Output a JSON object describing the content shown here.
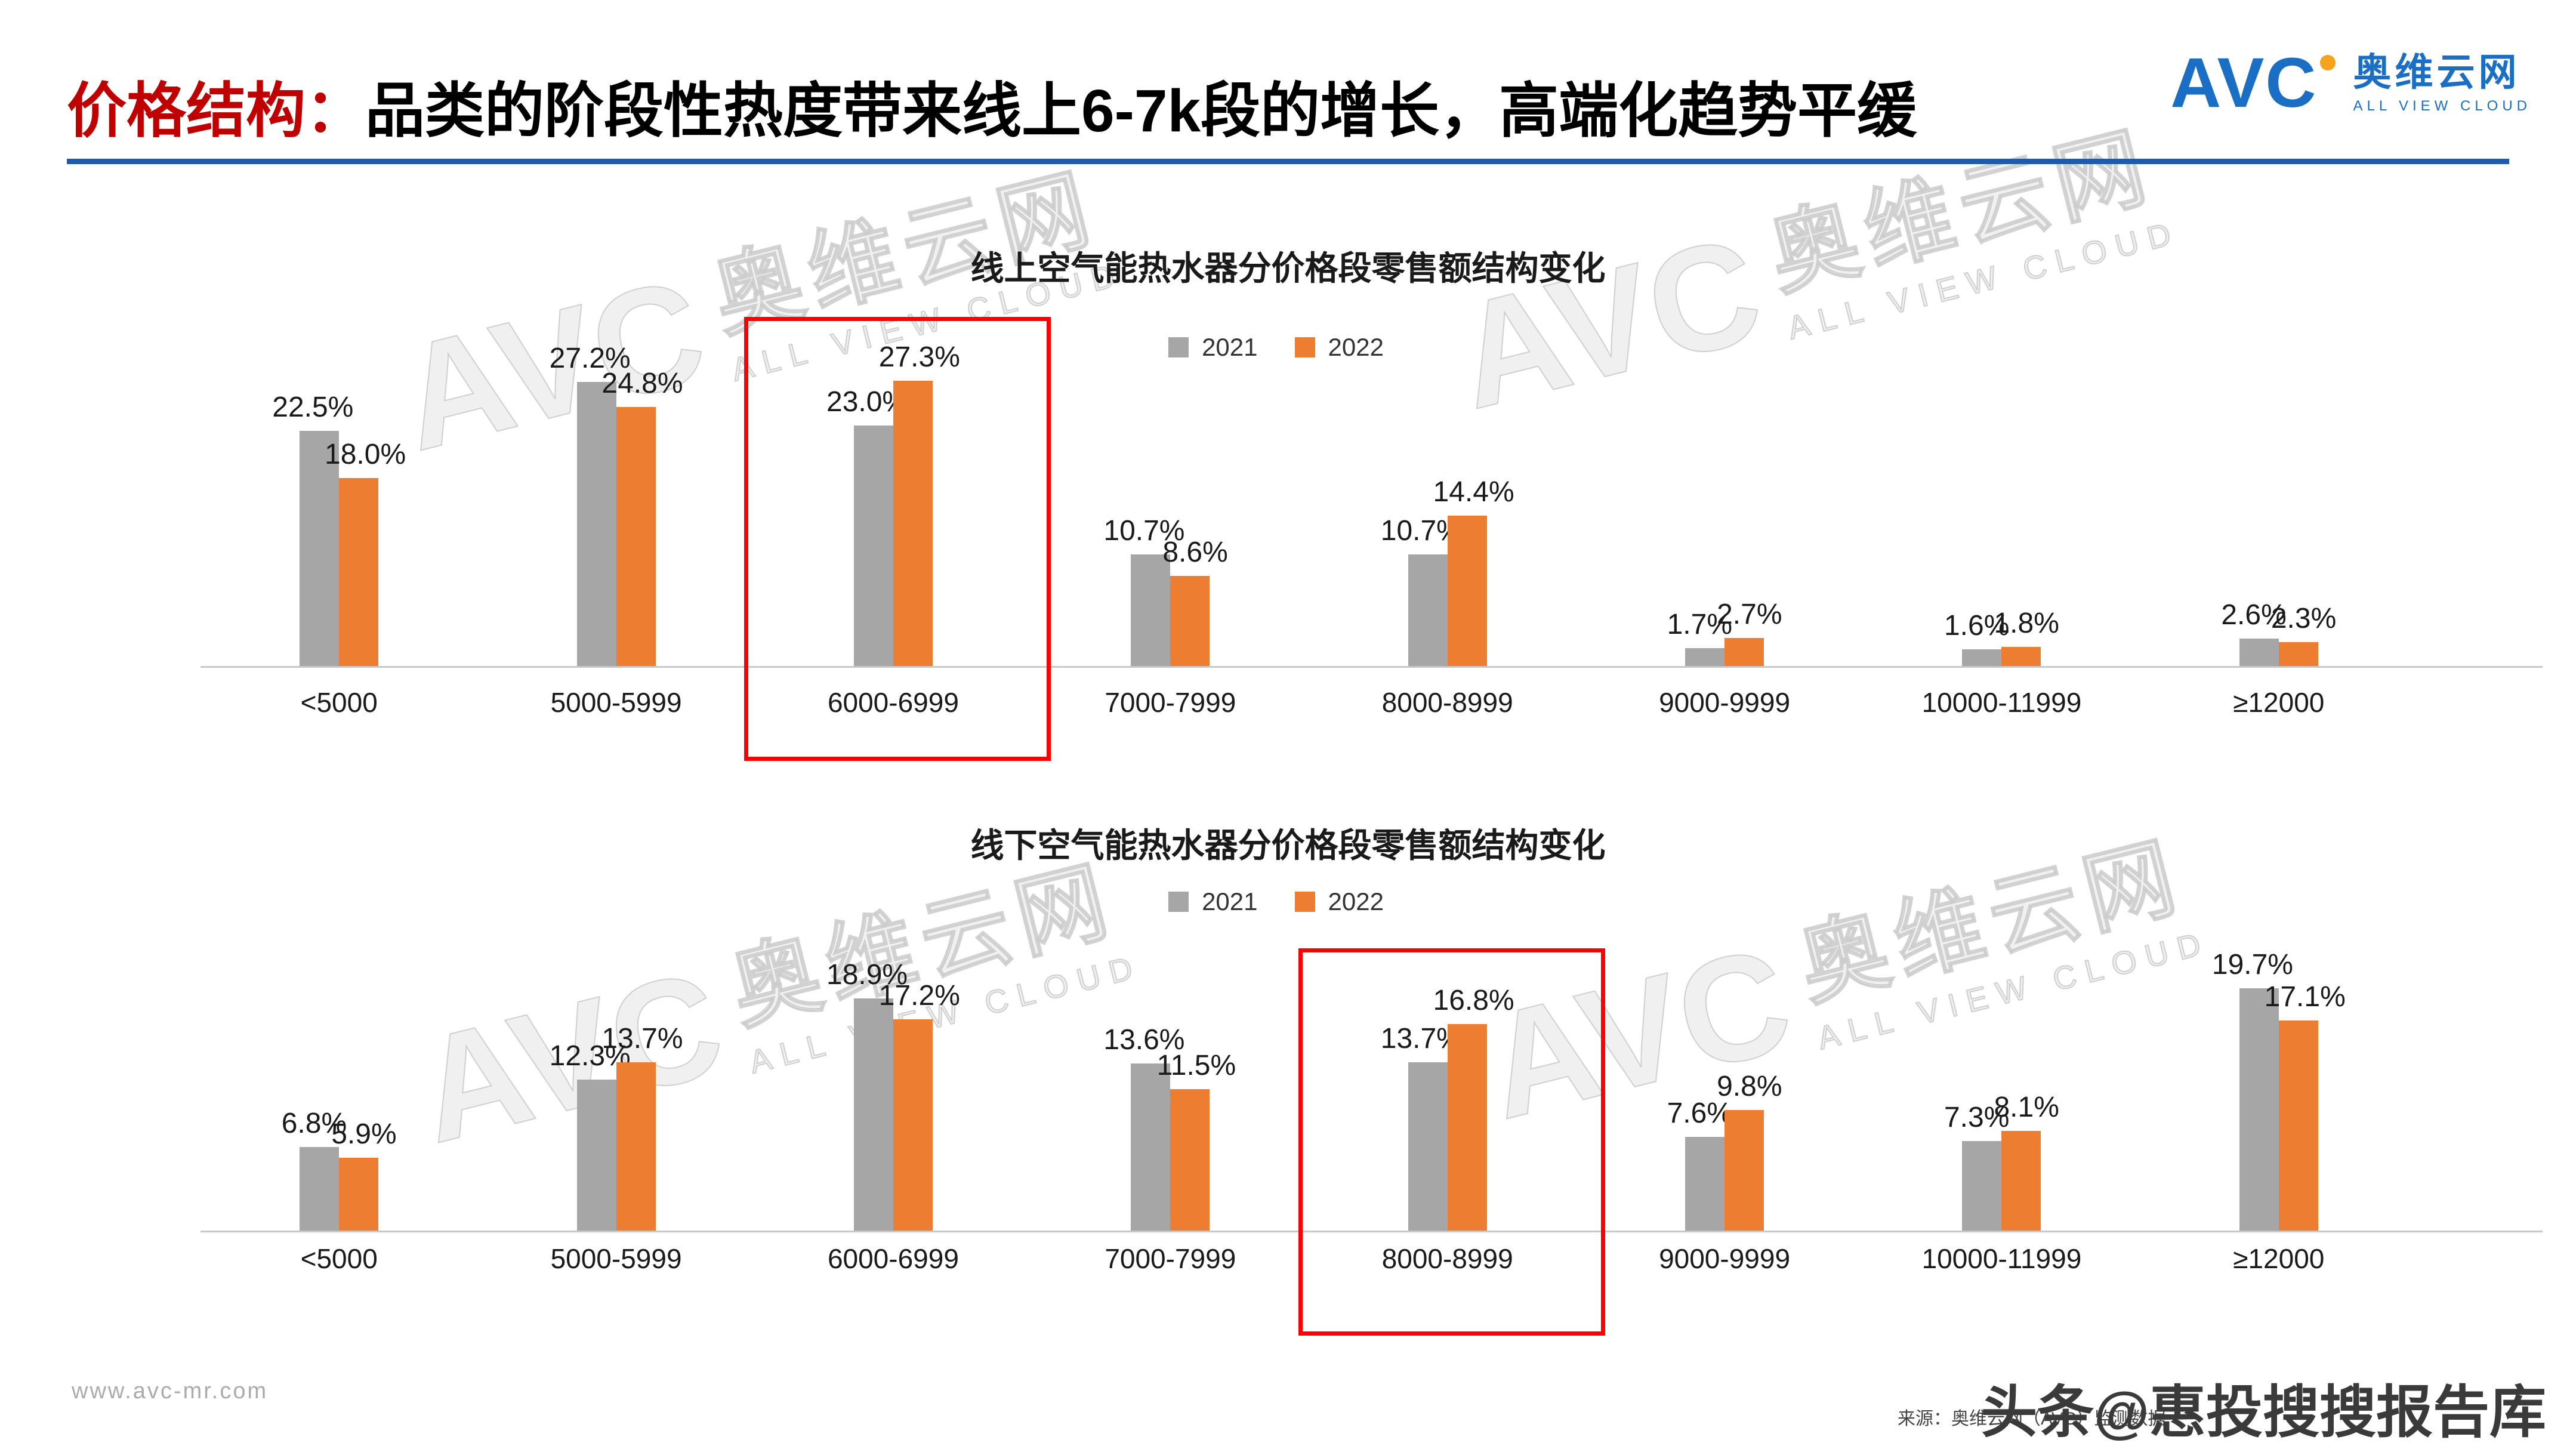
{
  "header": {
    "title_prefix": "价格结构：",
    "title_rest": "品类的阶段性热度带来线上6-7k段的增长，高端化趋势平缓",
    "logo": {
      "avc": "AVC",
      "cn": "奥维云网",
      "en": "ALL VIEW CLOUD"
    }
  },
  "colors": {
    "series_2021": "#A6A6A6",
    "series_2022": "#ED7D31",
    "highlight": "#FF0000",
    "header_line": "#1F5BA8",
    "title_accent": "#C00000",
    "logo_blue": "#1A6FC4"
  },
  "chart_data": [
    {
      "type": "bar",
      "title": "线上空气能热水器分价格段零售额结构变化",
      "categories": [
        "<5000",
        "5000-5999",
        "6000-6999",
        "7000-7999",
        "8000-8999",
        "9000-9999",
        "10000-11999",
        "≥12000"
      ],
      "series": [
        {
          "name": "2021",
          "values": [
            22.5,
            27.2,
            23.0,
            10.7,
            10.7,
            1.7,
            1.6,
            2.6
          ]
        },
        {
          "name": "2022",
          "values": [
            18.0,
            24.8,
            27.3,
            8.6,
            14.4,
            2.7,
            1.8,
            2.3
          ]
        }
      ],
      "ylim": [
        0,
        30
      ],
      "grid": false,
      "legend_position": "top",
      "value_label_format": "0.0%",
      "highlight_category": "6000-6999",
      "highlight_index": 2
    },
    {
      "type": "bar",
      "title": "线下空气能热水器分价格段零售额结构变化",
      "categories": [
        "<5000",
        "5000-5999",
        "6000-6999",
        "7000-7999",
        "8000-8999",
        "9000-9999",
        "10000-11999",
        "≥12000"
      ],
      "series": [
        {
          "name": "2021",
          "values": [
            6.8,
            12.3,
            18.9,
            13.6,
            13.7,
            7.6,
            7.3,
            19.7
          ]
        },
        {
          "name": "2022",
          "values": [
            5.9,
            13.7,
            17.2,
            11.5,
            16.8,
            9.8,
            8.1,
            17.1
          ]
        }
      ],
      "ylim": [
        0,
        22
      ],
      "grid": false,
      "legend_position": "top",
      "value_label_format": "0.0%",
      "highlight_category": "8000-8999",
      "highlight_index": 4
    }
  ],
  "watermark": {
    "avc": "AVC",
    "cn": "奥维云网",
    "en": "ALL VIEW CLOUD"
  },
  "footer": {
    "url": "www.avc-mr.com",
    "source": "来源：奥维云网（AVC）监测数据",
    "watermark_big": "头条@惠投搜搜报告库"
  }
}
